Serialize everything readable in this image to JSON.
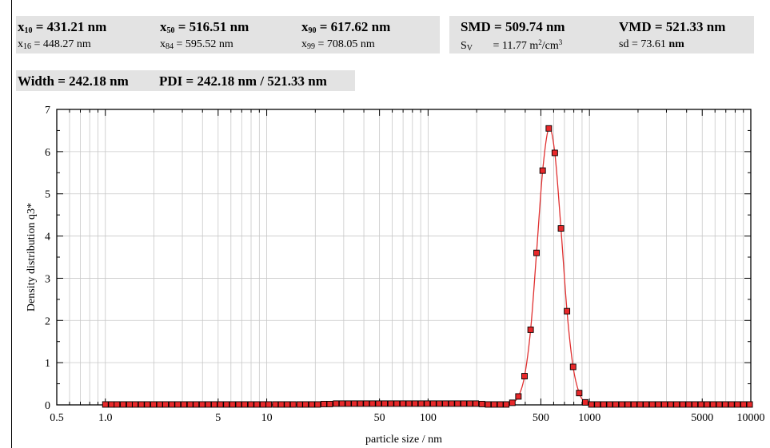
{
  "stats": {
    "x10": {
      "sym": "x",
      "sub": "10",
      "val": "= 431.21 nm"
    },
    "x50": {
      "sym": "x",
      "sub": "50",
      "val": "= 516.51 nm"
    },
    "x90": {
      "sym": "x",
      "sub": "90",
      "val": "= 617.62 nm"
    },
    "x16": {
      "sym": "x",
      "sub": "16",
      "val": "= 448.27 nm"
    },
    "x84": {
      "sym": "x",
      "sub": "84",
      "val": "= 595.52 nm"
    },
    "x99": {
      "sym": "x",
      "sub": "99",
      "val": "= 708.05 nm"
    },
    "smd": "SMD  = 509.74 nm",
    "vmd": "VMD  = 521.33 nm",
    "sv": {
      "sym": "S",
      "sub": "V",
      "val": "= 11.77 m",
      "sup": "2",
      "unit": "/cm",
      "sup2": "3"
    },
    "sd": {
      "label": "sd = 73.61",
      "unit": "nm"
    },
    "width": "Width = 242.18 nm",
    "pdi": "PDI = 242.18 nm / 521.33 nm"
  },
  "chart_data": {
    "type": "scatter",
    "xscale": "log",
    "xlim": [
      0.5,
      10000
    ],
    "ylim": [
      0,
      7
    ],
    "xlabel": "particle size / nm",
    "ylabel": "Density distribution q3*",
    "xticklabels": [
      {
        "v": 0.5,
        "t": "0.5"
      },
      {
        "v": 1,
        "t": "1.0"
      },
      {
        "v": 5,
        "t": "5"
      },
      {
        "v": 10,
        "t": "10"
      },
      {
        "v": 50,
        "t": "50"
      },
      {
        "v": 100,
        "t": "100"
      },
      {
        "v": 500,
        "t": "500"
      },
      {
        "v": 1000,
        "t": "1000"
      },
      {
        "v": 5000,
        "t": "5000"
      },
      {
        "v": 10000,
        "t": "10000"
      }
    ],
    "yticks": [
      0,
      1,
      2,
      3,
      4,
      5,
      6,
      7
    ],
    "grid": true,
    "marker_color": "#e8282a",
    "curve_color": "#e03030",
    "x": [
      1.0,
      1.09,
      1.18,
      1.29,
      1.41,
      1.53,
      1.67,
      1.82,
      1.99,
      2.17,
      2.36,
      2.58,
      2.81,
      3.07,
      3.35,
      3.65,
      3.98,
      4.34,
      4.73,
      5.16,
      5.63,
      6.14,
      6.7,
      7.3,
      7.97,
      8.69,
      9.48,
      10.3,
      11.3,
      12.3,
      13.4,
      14.6,
      16.0,
      17.4,
      19.0,
      20.7,
      22.6,
      24.6,
      26.9,
      29.3,
      32.0,
      34.9,
      38.0,
      41.5,
      45.2,
      49.3,
      53.8,
      58.7,
      64.0,
      69.8,
      76.1,
      83.0,
      90.5,
      98.7,
      107.7,
      117.4,
      128.1,
      139.7,
      152.4,
      166.2,
      181.3,
      197.7,
      215.7,
      235.2,
      256.5,
      279.8,
      305.2,
      332.8,
      363.0,
      396.0,
      432.0,
      470.0,
      513.0,
      560.0,
      610.0,
      666.0,
      726.0,
      792.0,
      864.0,
      942.0,
      1028.0,
      1121.0,
      1223.0,
      1334.0,
      1455.0,
      1587.0,
      1731.0,
      1888.0,
      2059.0,
      2246.0,
      2450.0,
      2672.0,
      2915.0,
      3180.0,
      3468.0,
      3783.0,
      4127.0,
      4501.0,
      4910.0,
      5355.0,
      5841.0,
      6371.0,
      6950.0,
      7581.0,
      8269.0,
      9020.0,
      9839.0
    ],
    "y": [
      0.01,
      0.01,
      0.01,
      0.01,
      0.01,
      0.01,
      0.01,
      0.01,
      0.01,
      0.01,
      0.01,
      0.01,
      0.01,
      0.01,
      0.01,
      0.01,
      0.01,
      0.01,
      0.01,
      0.01,
      0.01,
      0.01,
      0.01,
      0.01,
      0.01,
      0.01,
      0.01,
      0.01,
      0.01,
      0.01,
      0.01,
      0.01,
      0.01,
      0.01,
      0.01,
      0.01,
      0.02,
      0.02,
      0.03,
      0.03,
      0.03,
      0.03,
      0.03,
      0.03,
      0.03,
      0.03,
      0.03,
      0.03,
      0.03,
      0.03,
      0.03,
      0.03,
      0.03,
      0.03,
      0.03,
      0.03,
      0.03,
      0.03,
      0.03,
      0.03,
      0.03,
      0.03,
      0.02,
      0.01,
      0.01,
      0.01,
      0.01,
      0.05,
      0.2,
      0.68,
      1.78,
      3.6,
      5.55,
      6.55,
      5.97,
      4.18,
      2.22,
      0.9,
      0.28,
      0.06,
      0.01,
      0.01,
      0.01,
      0.01,
      0.01,
      0.01,
      0.01,
      0.01,
      0.01,
      0.01,
      0.01,
      0.01,
      0.01,
      0.01,
      0.01,
      0.01,
      0.01,
      0.01,
      0.01,
      0.01,
      0.01,
      0.01,
      0.01,
      0.01,
      0.01,
      0.01,
      0.01
    ]
  }
}
